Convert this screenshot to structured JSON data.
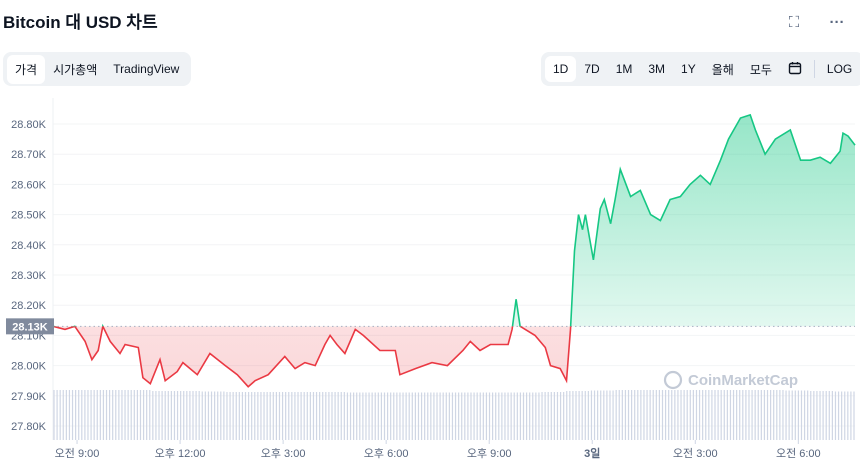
{
  "header": {
    "title": "Bitcoin 대 USD 차트",
    "fullscreen_icon": "expand-icon",
    "more_icon": "more-horizontal-icon"
  },
  "left_tabs": [
    {
      "label": "가격",
      "active": true
    },
    {
      "label": "시가총액"
    },
    {
      "label": "TradingView"
    }
  ],
  "range_tabs": [
    {
      "label": "1D",
      "active": true
    },
    {
      "label": "7D"
    },
    {
      "label": "1M"
    },
    {
      "label": "3M"
    },
    {
      "label": "1Y"
    },
    {
      "label": "올해"
    },
    {
      "label": "모두"
    }
  ],
  "calendar_icon": "calendar-icon",
  "log_label": "LOG",
  "watermark": "CoinMarketCap",
  "colors": {
    "up": "#16c784",
    "down": "#ea3943",
    "badge": "#808a9d",
    "volume": "#cfd6e4"
  },
  "chart_data": {
    "type": "line",
    "reference_price": 28.13,
    "reference_label": "28.13K",
    "ylim": [
      27.76,
      28.86
    ],
    "yticks": [
      "28.80K",
      "28.70K",
      "28.60K",
      "28.50K",
      "28.40K",
      "28.30K",
      "28.20K",
      "28.10K",
      "28.00K",
      "27.90K",
      "27.80K"
    ],
    "ytick_values": [
      28.8,
      28.7,
      28.6,
      28.5,
      28.4,
      28.3,
      28.2,
      28.1,
      28.0,
      27.9,
      27.8
    ],
    "xlim": [
      "2 08:18",
      "3 07:39"
    ],
    "xticks": [
      {
        "t": "2 09:00",
        "label": "오전 9:00"
      },
      {
        "t": "2 12:00",
        "label": "오후 12:00"
      },
      {
        "t": "2 15:00",
        "label": "오후 3:00"
      },
      {
        "t": "2 18:00",
        "label": "오후 6:00"
      },
      {
        "t": "2 21:00",
        "label": "오후 9:00"
      },
      {
        "t": "3 00:00",
        "label": "3일"
      },
      {
        "t": "3 03:00",
        "label": "오전 3:00"
      },
      {
        "t": "3 06:00",
        "label": "오전 6:00"
      }
    ],
    "points": [
      [
        "2 08:18",
        28.13
      ],
      [
        "2 08:39",
        28.12
      ],
      [
        "2 08:56",
        28.13
      ],
      [
        "2 09:14",
        28.08
      ],
      [
        "2 09:26",
        28.02
      ],
      [
        "2 09:37",
        28.05
      ],
      [
        "2 09:45",
        28.13
      ],
      [
        "2 09:58",
        28.08
      ],
      [
        "2 10:15",
        28.04
      ],
      [
        "2 10:24",
        28.07
      ],
      [
        "2 10:47",
        28.06
      ],
      [
        "2 10:55",
        27.96
      ],
      [
        "2 11:08",
        27.94
      ],
      [
        "2 11:25",
        28.02
      ],
      [
        "2 11:34",
        27.95
      ],
      [
        "2 11:55",
        27.98
      ],
      [
        "2 12:05",
        28.01
      ],
      [
        "2 12:30",
        27.97
      ],
      [
        "2 12:52",
        28.04
      ],
      [
        "2 13:19",
        28.0
      ],
      [
        "2 13:40",
        27.97
      ],
      [
        "2 13:59",
        27.93
      ],
      [
        "2 14:11",
        27.95
      ],
      [
        "2 14:34",
        27.97
      ],
      [
        "2 15:03",
        28.03
      ],
      [
        "2 15:21",
        27.99
      ],
      [
        "2 15:38",
        28.01
      ],
      [
        "2 15:56",
        28.0
      ],
      [
        "2 16:13",
        28.07
      ],
      [
        "2 16:22",
        28.1
      ],
      [
        "2 16:34",
        28.07
      ],
      [
        "2 16:48",
        28.04
      ],
      [
        "2 17:06",
        28.12
      ],
      [
        "2 17:20",
        28.1
      ],
      [
        "2 17:49",
        28.05
      ],
      [
        "2 18:16",
        28.05
      ],
      [
        "2 18:24",
        27.97
      ],
      [
        "2 18:51",
        27.99
      ],
      [
        "2 19:20",
        28.01
      ],
      [
        "2 19:47",
        28.0
      ],
      [
        "2 20:14",
        28.05
      ],
      [
        "2 20:27",
        28.08
      ],
      [
        "2 20:44",
        28.05
      ],
      [
        "2 21:02",
        28.07
      ],
      [
        "2 21:33",
        28.07
      ],
      [
        "2 21:40",
        28.12
      ],
      [
        "2 21:47",
        28.22
      ],
      [
        "2 21:54",
        28.13
      ],
      [
        "2 22:20",
        28.1
      ],
      [
        "2 22:38",
        28.06
      ],
      [
        "2 22:47",
        28.0
      ],
      [
        "2 23:04",
        27.99
      ],
      [
        "2 23:15",
        27.95
      ],
      [
        "2 23:22",
        28.12
      ],
      [
        "2 23:29",
        28.38
      ],
      [
        "2 23:36",
        28.5
      ],
      [
        "2 23:43",
        28.45
      ],
      [
        "2 23:48",
        28.5
      ],
      [
        "3 00:02",
        28.35
      ],
      [
        "3 00:14",
        28.52
      ],
      [
        "3 00:21",
        28.55
      ],
      [
        "3 00:32",
        28.47
      ],
      [
        "3 00:40",
        28.55
      ],
      [
        "3 00:49",
        28.65
      ],
      [
        "3 01:07",
        28.56
      ],
      [
        "3 01:24",
        28.58
      ],
      [
        "3 01:42",
        28.5
      ],
      [
        "3 01:59",
        28.48
      ],
      [
        "3 02:16",
        28.55
      ],
      [
        "3 02:34",
        28.56
      ],
      [
        "3 02:51",
        28.6
      ],
      [
        "3 03:09",
        28.63
      ],
      [
        "3 03:26",
        28.6
      ],
      [
        "3 03:44",
        28.68
      ],
      [
        "3 03:58",
        28.75
      ],
      [
        "3 04:10",
        28.79
      ],
      [
        "3 04:19",
        28.82
      ],
      [
        "3 04:36",
        28.83
      ],
      [
        "3 04:45",
        28.78
      ],
      [
        "3 05:02",
        28.7
      ],
      [
        "3 05:20",
        28.75
      ],
      [
        "3 05:46",
        28.78
      ],
      [
        "3 06:04",
        28.68
      ],
      [
        "3 06:21",
        28.68
      ],
      [
        "3 06:38",
        28.69
      ],
      [
        "3 06:56",
        28.67
      ],
      [
        "3 07:13",
        28.71
      ],
      [
        "3 07:18",
        28.77
      ],
      [
        "3 07:27",
        28.76
      ],
      [
        "3 07:39",
        28.73
      ]
    ],
    "volume_relative": [
      1,
      1,
      1,
      1,
      0.98,
      0.98,
      0.97,
      0.96,
      0.96,
      0.96,
      0.96,
      0.96,
      0.95,
      0.95,
      0.95,
      0.95,
      0.95,
      0.95,
      0.95,
      0.95,
      0.96,
      0.98,
      0.99,
      1,
      1,
      1,
      1,
      1,
      1,
      1,
      0.99,
      0.98,
      0.97
    ]
  }
}
